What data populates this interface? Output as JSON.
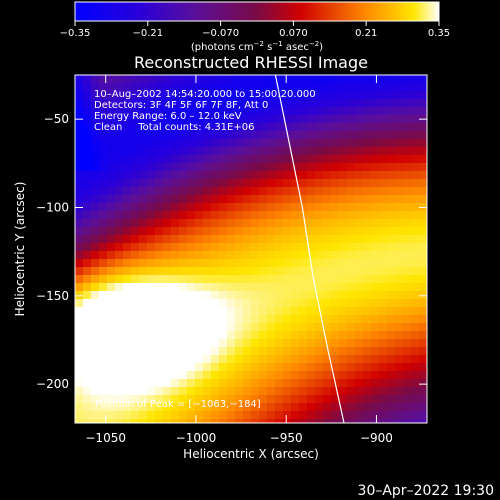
{
  "chart_data": {
    "type": "heatmap",
    "title": "Reconstructed RHESSI Image",
    "xlabel": "Heliocentric X (arcsec)",
    "ylabel": "Heliocentric Y (arcsec)",
    "xlim": [
      -1067,
      -872
    ],
    "ylim": [
      -222,
      -25
    ],
    "x_ticks": [
      -1050,
      -1000,
      -950,
      -900
    ],
    "y_ticks": [
      -50,
      -100,
      -150,
      -200
    ],
    "x_tick_labels": [
      "−1050",
      "−1000",
      "−950",
      "−900"
    ],
    "y_tick_labels": [
      "−50",
      "−100",
      "−150",
      "−200"
    ],
    "colorbar": {
      "range": [
        -0.35,
        0.35
      ],
      "ticks": [
        -0.35,
        -0.21,
        -0.07,
        0.07,
        0.21,
        0.35
      ],
      "tick_labels": [
        "−0.35",
        "−0.21",
        "−0.070",
        "0.070",
        "0.21",
        "0.35"
      ],
      "units_text": "(photons cm",
      "units_parts": [
        "(photons cm",
        "−2",
        " s",
        "−1",
        " asec",
        "−2",
        ")"
      ]
    },
    "annotations": [
      "10–Aug–2002 14:54:20.000 to 15:00:20.000",
      "Detectors: 3F 4F 5F 6F 7F 8F, Att 0",
      "Energy Range: 6.0 – 12.0 keV",
      "Clean     Total counts: 4.31E+06"
    ],
    "peak_label": "Position of Peak = [−1063,−184]",
    "peak_position": [
      -1063,
      -184
    ],
    "limb_curve": [
      [
        -956,
        -25
      ],
      [
        -949,
        -60
      ],
      [
        -941,
        -100
      ],
      [
        -935,
        -140
      ],
      [
        -927,
        -180
      ],
      [
        -918,
        -222
      ]
    ],
    "timestamp": "30–Apr–2022 19:30"
  }
}
